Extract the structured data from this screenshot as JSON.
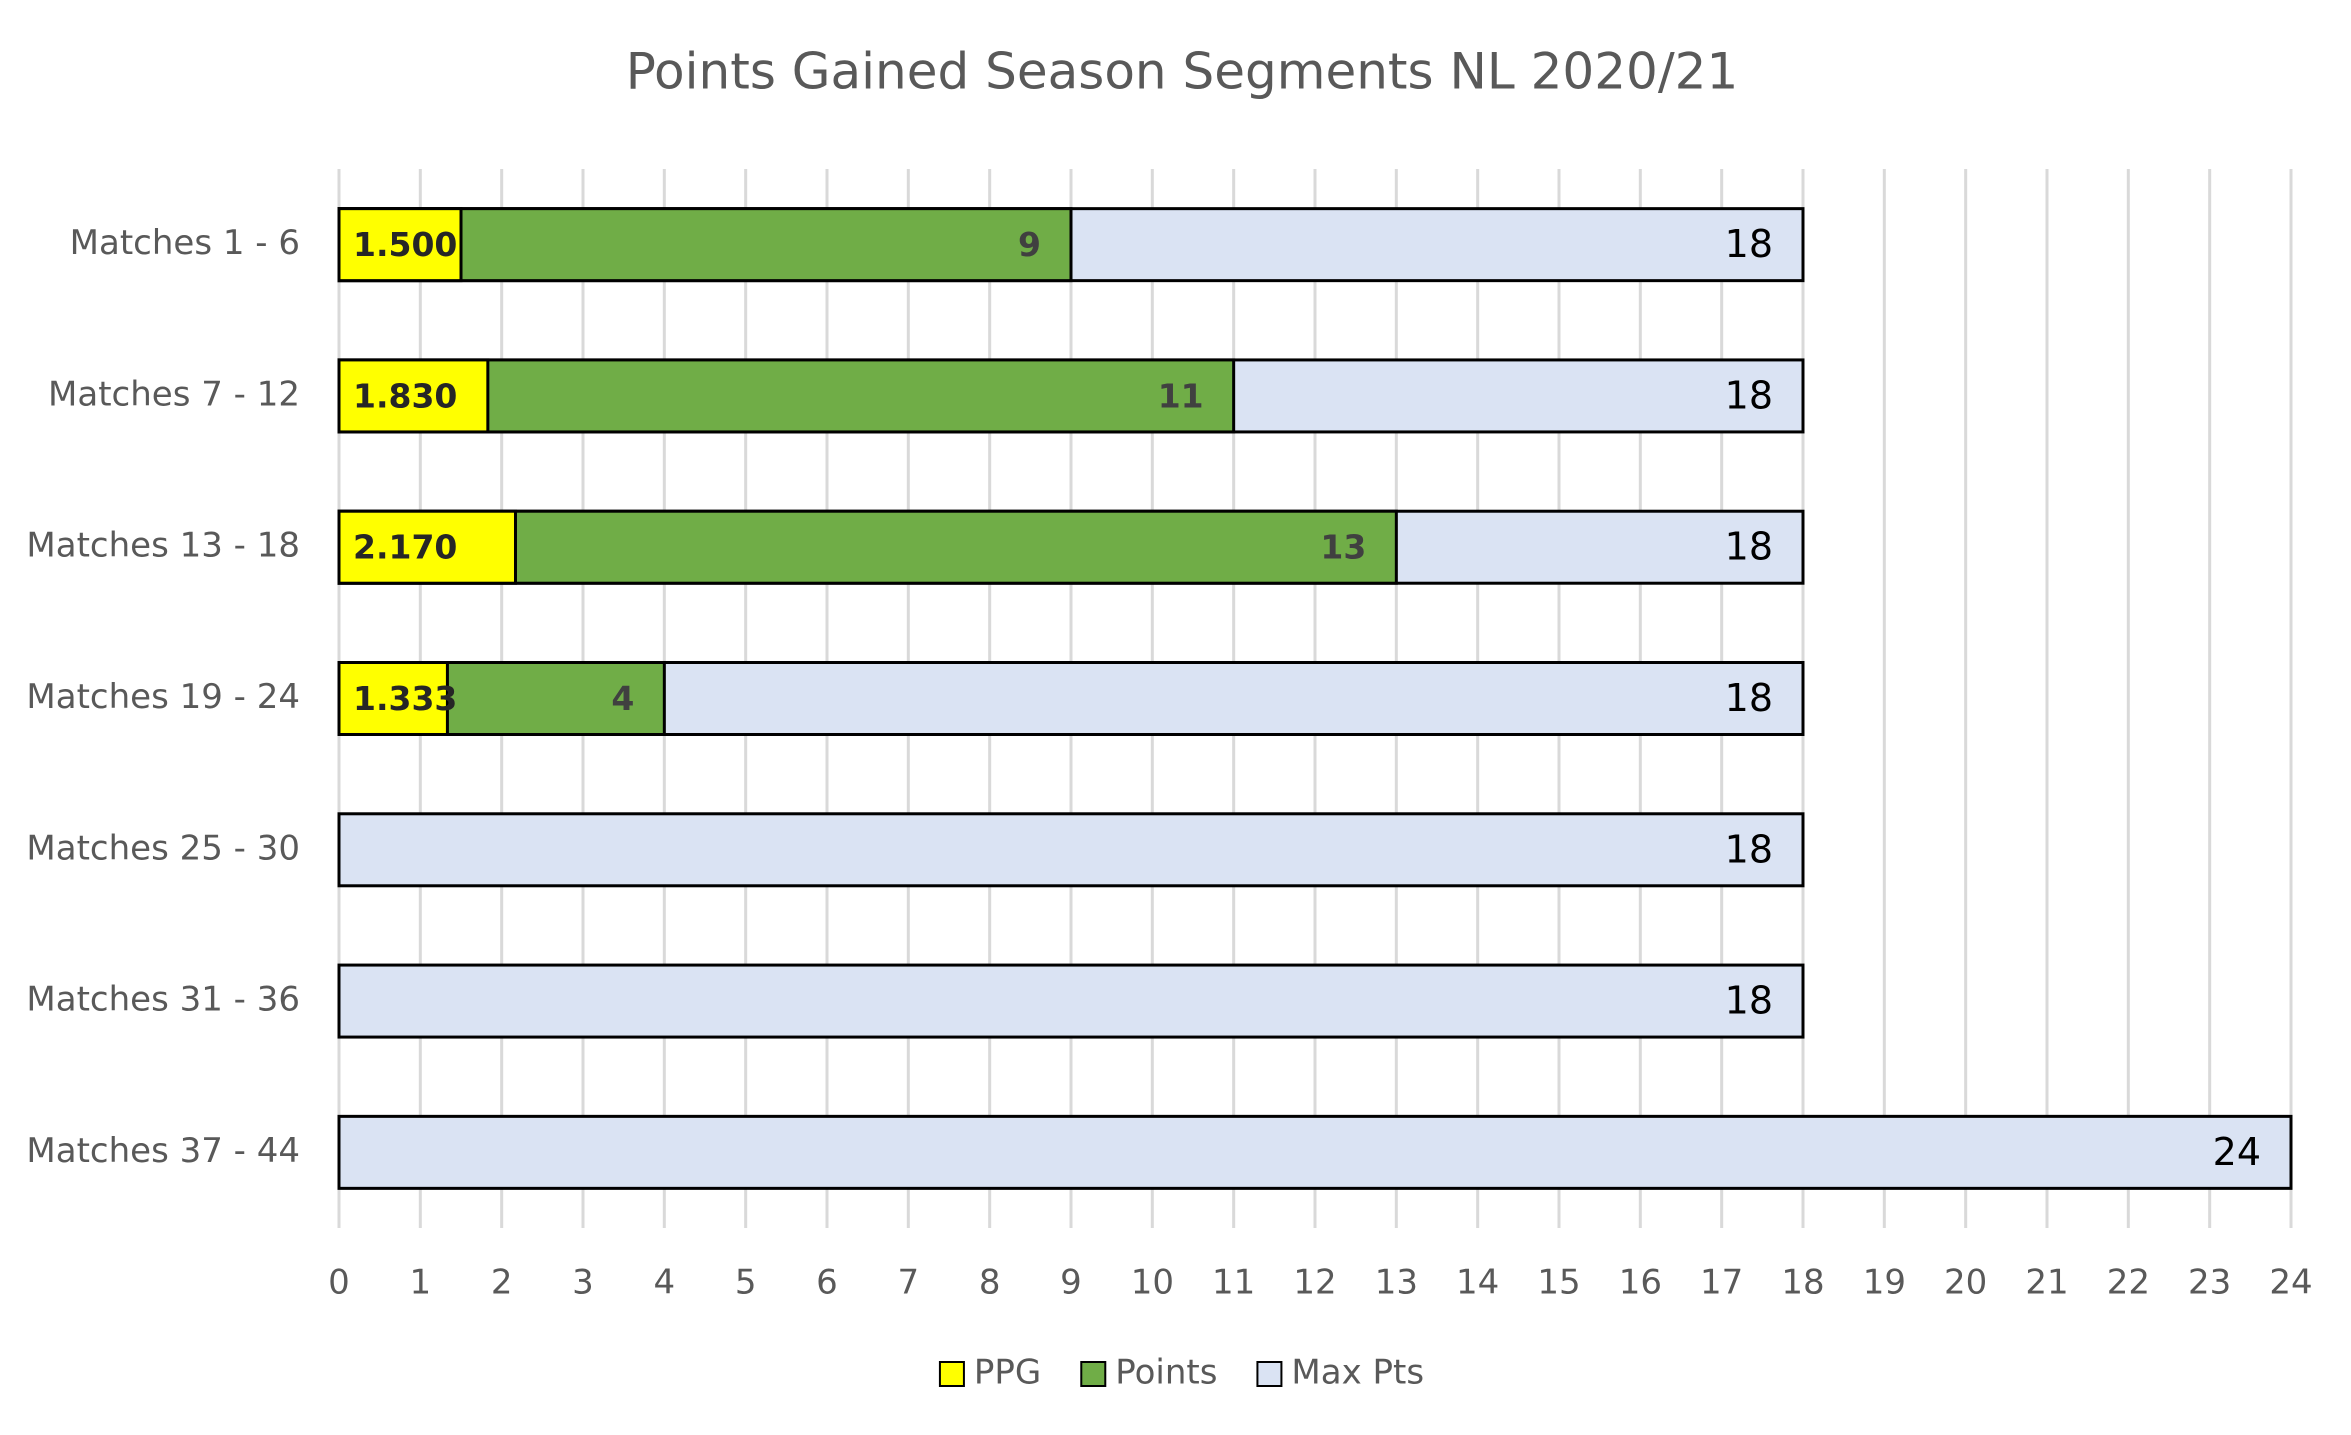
{
  "chart_data": {
    "type": "bar",
    "orientation": "horizontal",
    "title": "Points Gained Season Segments NL 2020/21",
    "categories": [
      "Matches 1 - 6",
      "Matches 7 - 12",
      "Matches 13 - 18",
      "Matches 19 - 24",
      "Matches 25 - 30",
      "Matches 31 - 36",
      "Matches 37 - 44"
    ],
    "series": [
      {
        "name": "PPG",
        "color": "#ffff00",
        "values": [
          1.5,
          1.83,
          2.17,
          1.333,
          null,
          null,
          null
        ],
        "value_labels": [
          "1.500",
          "1.830",
          "2.170",
          "1.333",
          null,
          null,
          null
        ]
      },
      {
        "name": "Points",
        "color": "#70ad47",
        "values": [
          9,
          11,
          13,
          4,
          null,
          null,
          null
        ]
      },
      {
        "name": "Max Pts",
        "color": "#dae3f3",
        "values": [
          18,
          18,
          18,
          18,
          18,
          18,
          24
        ]
      }
    ],
    "xlim": [
      0,
      24
    ],
    "xticks": [
      0,
      1,
      2,
      3,
      4,
      5,
      6,
      7,
      8,
      9,
      10,
      11,
      12,
      13,
      14,
      15,
      16,
      17,
      18,
      19,
      20,
      21,
      22,
      23,
      24
    ],
    "grid": true,
    "legend": "bottom"
  }
}
